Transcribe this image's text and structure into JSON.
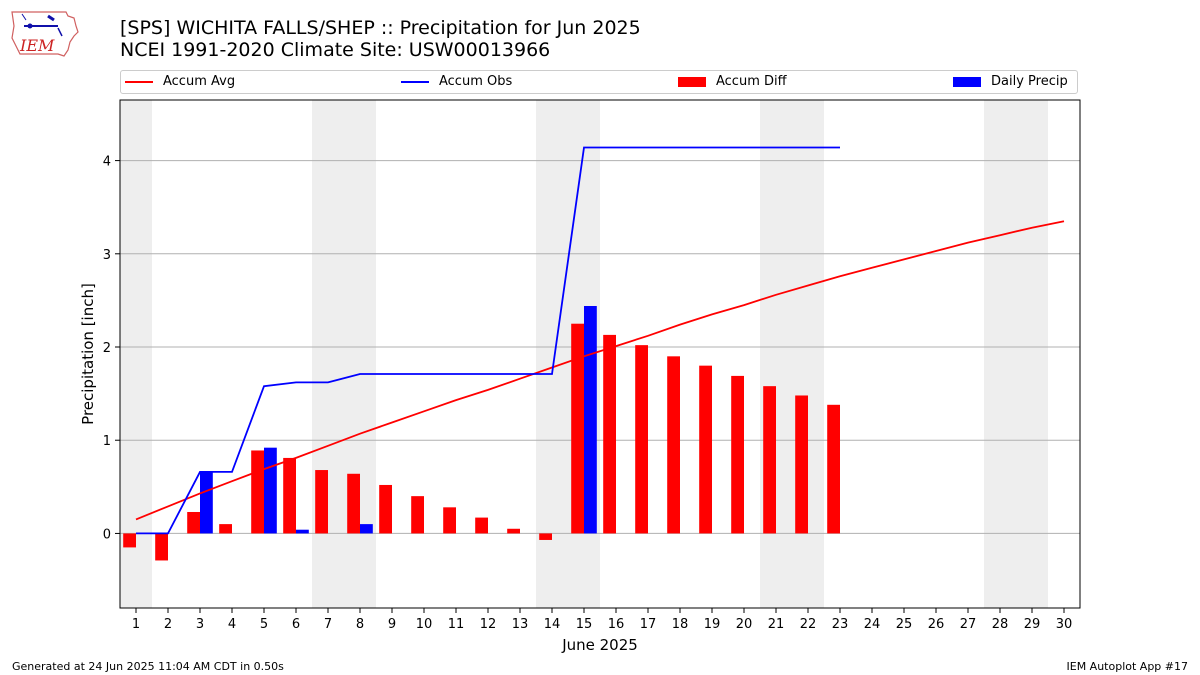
{
  "header": {
    "logo_text": "IEM",
    "title_line1": "[SPS] WICHITA FALLS/SHEP :: Precipitation for Jun 2025",
    "title_line2": "NCEI 1991-2020 Climate Site: USW00013966"
  },
  "footer": {
    "generated": "Generated at 24 Jun 2025 11:04 AM CDT in 0.50s",
    "app": "IEM Autoplot App #17"
  },
  "legend": [
    {
      "label": "Accum Avg",
      "kind": "line",
      "color": "#ff0000"
    },
    {
      "label": "Accum Obs",
      "kind": "line",
      "color": "#0000ff"
    },
    {
      "label": "Accum Diff",
      "kind": "bar",
      "color": "#ff0000"
    },
    {
      "label": "Daily Precip",
      "kind": "bar",
      "color": "#0000ff"
    }
  ],
  "chart_data": {
    "type": "bar",
    "title": "[SPS] WICHITA FALLS/SHEP :: Precipitation for Jun 2025",
    "xlabel": "June 2025",
    "ylabel": "Precipitation [inch]",
    "x": [
      1,
      2,
      3,
      4,
      5,
      6,
      7,
      8,
      9,
      10,
      11,
      12,
      13,
      14,
      15,
      16,
      17,
      18,
      19,
      20,
      21,
      22,
      23,
      24,
      25,
      26,
      27,
      28,
      29,
      30
    ],
    "xlim": [
      0.5,
      30.5
    ],
    "ylim": [
      -0.8,
      4.65
    ],
    "yticks": [
      0,
      1,
      2,
      3,
      4
    ],
    "grid": "y",
    "weekend_shading": [
      [
        1,
        1
      ],
      [
        7,
        8
      ],
      [
        14,
        15
      ],
      [
        21,
        22
      ],
      [
        28,
        29
      ]
    ],
    "shade_color": "#eeeeee",
    "series": [
      {
        "name": "Accum Avg",
        "type": "line",
        "color": "#ff0000",
        "values": [
          0.15,
          0.29,
          0.43,
          0.56,
          0.69,
          0.81,
          0.94,
          1.07,
          1.19,
          1.31,
          1.43,
          1.54,
          1.66,
          1.78,
          1.9,
          2.01,
          2.12,
          2.24,
          2.35,
          2.45,
          2.56,
          2.66,
          2.76,
          2.85,
          2.94,
          3.03,
          3.12,
          3.2,
          3.28,
          3.35
        ]
      },
      {
        "name": "Accum Obs",
        "type": "line",
        "color": "#0000ff",
        "values": [
          0.0,
          0.0,
          0.66,
          0.66,
          1.58,
          1.62,
          1.62,
          1.71,
          1.71,
          1.71,
          1.71,
          1.71,
          1.71,
          1.71,
          4.14,
          4.14,
          4.14,
          4.14,
          4.14,
          4.14,
          4.14,
          4.14,
          4.14,
          null,
          null,
          null,
          null,
          null,
          null,
          null
        ]
      },
      {
        "name": "Accum Diff",
        "type": "bar",
        "color": "#ff0000",
        "values": [
          -0.15,
          -0.29,
          0.23,
          0.1,
          0.89,
          0.81,
          0.68,
          0.64,
          0.52,
          0.4,
          0.28,
          0.17,
          0.05,
          -0.07,
          2.25,
          2.13,
          2.02,
          1.9,
          1.8,
          1.69,
          1.58,
          1.48,
          1.38,
          null,
          null,
          null,
          null,
          null,
          null,
          null
        ]
      },
      {
        "name": "Daily Precip",
        "type": "bar",
        "color": "#0000ff",
        "values": [
          0,
          0,
          0.66,
          0,
          0.92,
          0.04,
          0,
          0.1,
          0,
          0,
          0,
          0,
          0,
          0,
          2.44,
          0,
          0,
          0,
          0,
          0,
          0,
          0,
          0,
          null,
          null,
          null,
          null,
          null,
          null,
          null
        ]
      }
    ]
  }
}
